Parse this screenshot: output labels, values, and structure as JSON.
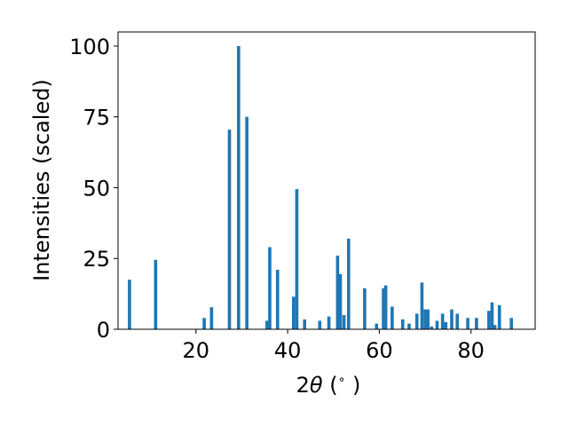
{
  "chart_data": {
    "type": "bar",
    "xlabel_parts": {
      "prefix": "2",
      "symbol": "θ",
      "suffix": " (",
      "unit": "∘",
      "close": ")"
    },
    "ylabel": "Intensities (scaled)",
    "xlim": [
      3,
      94
    ],
    "ylim": [
      0,
      105
    ],
    "bar_width": 0.7,
    "color": "#1f77b4",
    "grid": false,
    "xticks": [
      20,
      40,
      60,
      80
    ],
    "yticks": [
      0,
      25,
      50,
      75,
      100
    ],
    "x": [
      5.5,
      11.2,
      21.8,
      23.4,
      27.3,
      29.3,
      31.1,
      35.5,
      36.1,
      37.8,
      41.3,
      42.0,
      43.7,
      47.0,
      49.0,
      50.9,
      51.5,
      52.3,
      53.3,
      56.8,
      59.4,
      60.9,
      61.4,
      62.8,
      65.1,
      66.5,
      68.2,
      69.3,
      70.0,
      70.6,
      71.4,
      72.6,
      73.8,
      74.5,
      75.8,
      77.0,
      79.3,
      81.2,
      83.9,
      84.6,
      85.2,
      86.2,
      88.8
    ],
    "values": [
      17.5,
      24.5,
      4.0,
      7.8,
      70.5,
      100.0,
      75.0,
      3.0,
      29.0,
      21.0,
      11.5,
      49.5,
      3.5,
      3.0,
      4.5,
      26.0,
      19.5,
      5.0,
      32.0,
      14.5,
      2.0,
      14.5,
      15.5,
      8.0,
      3.5,
      2.0,
      5.5,
      16.5,
      7.0,
      7.0,
      1.0,
      3.0,
      5.5,
      2.5,
      7.0,
      5.5,
      4.0,
      4.0,
      6.5,
      9.5,
      1.5,
      8.5,
      4.0
    ]
  }
}
